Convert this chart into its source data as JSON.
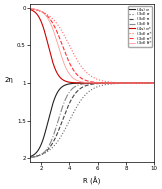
{
  "title": "",
  "xlabel": "R (Å)",
  "ylabel": "2η",
  "xlim": [
    1.2,
    10.0
  ],
  "ylim": [
    -0.05,
    2.05
  ],
  "yticks": [
    0,
    0.5,
    1.0,
    1.5,
    2.0
  ],
  "ytick_labels": [
    "0",
    "0.5",
    "1",
    "1.5",
    "2"
  ],
  "xticks": [
    2,
    4,
    6,
    8,
    10
  ],
  "legend_entries": [
    {
      "label": "(4s) σ",
      "color": "#222222",
      "ls": "solid",
      "lw": 0.8
    },
    {
      "label": "(3d) σ",
      "color": "#666666",
      "ls": "dotted",
      "lw": 0.8
    },
    {
      "label": "(3d) π",
      "color": "#444444",
      "ls": "dashed",
      "lw": 0.8
    },
    {
      "label": "(3d) δ",
      "color": "#888888",
      "ls": "dashdot",
      "lw": 0.8
    },
    {
      "label": "(4s) σ*",
      "color": "#cc0000",
      "ls": "solid",
      "lw": 0.8
    },
    {
      "label": "(3d) σ*",
      "color": "#ff6666",
      "ls": "dotted",
      "lw": 0.8
    },
    {
      "label": "(3d) π*",
      "color": "#ff3333",
      "ls": "dashed",
      "lw": 0.8
    },
    {
      "label": "(3d) δ*",
      "color": "#ff9999",
      "ls": "solid",
      "lw": 0.6
    }
  ],
  "background_color": "#ffffff"
}
